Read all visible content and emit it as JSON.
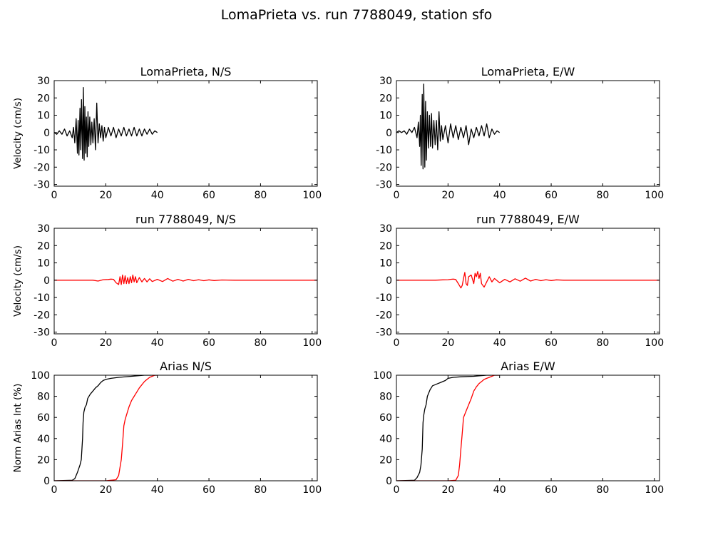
{
  "figure": {
    "suptitle": "LomaPrieta vs. run 7788049, station sfo"
  },
  "colors": {
    "recorded": "#000000",
    "simulated": "#ff0000",
    "axes": "#000000",
    "background": "#ffffff"
  },
  "chart_data": [
    {
      "type": "line",
      "title": "LomaPrieta, N/S",
      "xlabel": "",
      "ylabel": "Velocity (cm/s)",
      "xlim": [
        0,
        102
      ],
      "ylim": [
        -31,
        30
      ],
      "xticks": [
        0,
        20,
        40,
        60,
        80,
        100
      ],
      "yticks": [
        -30,
        -20,
        -10,
        0,
        10,
        20,
        30
      ],
      "grid": false,
      "series": [
        {
          "color": "#000000",
          "x": [
            0,
            1,
            2,
            3,
            4,
            5,
            6,
            7,
            7.5,
            8,
            8.5,
            9,
            9.3,
            9.6,
            10,
            10.3,
            10.6,
            11,
            11.3,
            11.6,
            11.9,
            12.2,
            12.5,
            12.8,
            13.1,
            13.4,
            13.8,
            14.2,
            14.6,
            15,
            15.5,
            16,
            16.5,
            17,
            17.5,
            18,
            18.5,
            19,
            19.5,
            20,
            21,
            22,
            23,
            24,
            25,
            26,
            27,
            28,
            29,
            30,
            31,
            32,
            33,
            34,
            35,
            36,
            37,
            38,
            39,
            40
          ],
          "y": [
            0,
            -1,
            1,
            -1,
            2,
            -2,
            1,
            -3,
            3,
            -6,
            8,
            -12,
            7,
            -13,
            14,
            -10,
            19,
            -15,
            26,
            -16,
            15,
            -12,
            9,
            -14,
            12,
            -8,
            9,
            -7,
            6,
            -6,
            8,
            -10,
            17,
            -6,
            5,
            -3,
            4,
            -5,
            3,
            -3,
            3,
            -2,
            3,
            -3,
            2,
            -2,
            3,
            -2,
            2,
            -2,
            3,
            -2,
            2,
            -2,
            2,
            -1,
            2,
            -1,
            1,
            0
          ]
        }
      ]
    },
    {
      "type": "line",
      "title": "LomaPrieta, E/W",
      "xlabel": "",
      "ylabel": "",
      "xlim": [
        0,
        102
      ],
      "ylim": [
        -31,
        30
      ],
      "xticks": [
        0,
        20,
        40,
        60,
        80,
        100
      ],
      "yticks": [
        -30,
        -20,
        -10,
        0,
        10,
        20,
        30
      ],
      "grid": false,
      "series": [
        {
          "color": "#000000",
          "x": [
            0,
            1,
            2,
            3,
            4,
            5,
            6,
            7,
            8,
            8.5,
            9,
            9.3,
            9.6,
            10,
            10.3,
            10.6,
            11,
            11.3,
            11.6,
            12,
            12.4,
            12.8,
            13.2,
            13.6,
            14,
            14.5,
            15,
            15.5,
            16,
            16.5,
            17,
            17.5,
            18,
            19,
            20,
            21,
            22,
            23,
            24,
            25,
            26,
            27,
            28,
            29,
            30,
            31,
            32,
            33,
            34,
            35,
            36,
            37,
            38,
            39,
            40
          ],
          "y": [
            0,
            1,
            0,
            1,
            -1,
            2,
            0,
            3,
            -3,
            6,
            -8,
            10,
            -19,
            22,
            -21,
            28,
            -20,
            18,
            -16,
            12,
            -9,
            10,
            -8,
            11,
            -9,
            7,
            -7,
            7,
            -10,
            12,
            -5,
            4,
            -4,
            4,
            -6,
            5,
            -3,
            4,
            -4,
            3,
            -3,
            4,
            -7,
            2,
            -3,
            3,
            -2,
            4,
            -2,
            5,
            -3,
            2,
            -1,
            1,
            0
          ]
        }
      ]
    },
    {
      "type": "line",
      "title": "run 7788049, N/S",
      "xlabel": "",
      "ylabel": "Velocity (cm/s)",
      "xlim": [
        0,
        102
      ],
      "ylim": [
        -31,
        30
      ],
      "xticks": [
        0,
        20,
        40,
        60,
        80,
        100
      ],
      "yticks": [
        -30,
        -20,
        -10,
        0,
        10,
        20,
        30
      ],
      "grid": false,
      "series": [
        {
          "color": "#ff0000",
          "x": [
            0,
            10,
            15,
            17,
            19,
            21,
            22,
            23,
            24,
            25,
            25.5,
            26,
            26.5,
            27,
            27.5,
            28,
            28.5,
            29,
            29.5,
            30,
            30.5,
            31,
            31.5,
            32,
            33,
            34,
            35,
            36,
            37,
            38,
            40,
            42,
            44,
            46,
            48,
            50,
            52,
            54,
            56,
            58,
            60,
            62,
            65,
            70,
            75,
            80,
            90,
            102
          ],
          "y": [
            0,
            0,
            0,
            -0.5,
            0.3,
            0.4,
            0.6,
            0.5,
            -1.5,
            -2.5,
            2,
            -2.5,
            3,
            -2,
            2.5,
            -2,
            1.5,
            -2,
            2,
            -1.5,
            3,
            -1,
            2,
            -1.5,
            1.5,
            -1,
            1,
            -1,
            0.8,
            -0.8,
            0.5,
            -0.8,
            1,
            -0.6,
            0.5,
            -0.5,
            0.5,
            -0.3,
            0.3,
            -0.3,
            0.2,
            -0.2,
            0.1,
            0,
            0,
            0,
            0,
            0
          ]
        }
      ]
    },
    {
      "type": "line",
      "title": "run 7788049, E/W",
      "xlabel": "",
      "ylabel": "",
      "xlim": [
        0,
        102
      ],
      "ylim": [
        -31,
        30
      ],
      "xticks": [
        0,
        20,
        40,
        60,
        80,
        100
      ],
      "yticks": [
        -30,
        -20,
        -10,
        0,
        10,
        20,
        30
      ],
      "grid": false,
      "series": [
        {
          "color": "#ff0000",
          "x": [
            0,
            10,
            15,
            18,
            20,
            21,
            22,
            23,
            24,
            25,
            25.5,
            26,
            26.5,
            27,
            27.5,
            28,
            29,
            30,
            30.5,
            31,
            31.5,
            32,
            32.5,
            33,
            34,
            35,
            36,
            37,
            38,
            40,
            42,
            44,
            46,
            48,
            50,
            52,
            54,
            56,
            58,
            60,
            62,
            65,
            70,
            80,
            90,
            102
          ],
          "y": [
            0,
            0,
            0,
            0.2,
            0.3,
            0.5,
            0.6,
            0.4,
            -2,
            -4.5,
            -3,
            1,
            4.5,
            -2,
            -3,
            2,
            3,
            -2,
            4,
            2,
            5,
            1,
            4,
            -2,
            -4,
            -1,
            2,
            -1,
            1,
            -1.5,
            0.5,
            -1,
            0.8,
            -0.6,
            1.2,
            -0.5,
            0.5,
            -0.3,
            0.3,
            -0.2,
            0.2,
            0,
            0,
            0,
            0,
            0
          ]
        }
      ]
    },
    {
      "type": "line",
      "title": "Arias N/S",
      "xlabel": "",
      "ylabel": "Norm Arias Int (%)",
      "xlim": [
        0,
        102
      ],
      "ylim": [
        0,
        100
      ],
      "xticks": [
        0,
        20,
        40,
        60,
        80,
        100
      ],
      "yticks": [
        0,
        20,
        40,
        60,
        80,
        100
      ],
      "grid": false,
      "series": [
        {
          "color": "#000000",
          "x": [
            0,
            7,
            8,
            9,
            10,
            10.5,
            11,
            11.2,
            11.5,
            12,
            12.5,
            13,
            14,
            15,
            16,
            17,
            18,
            19,
            20,
            22,
            25,
            30,
            35,
            40
          ],
          "y": [
            0,
            0.5,
            2,
            8,
            15,
            20,
            40,
            55,
            65,
            70,
            72,
            78,
            82,
            85,
            88,
            90,
            93,
            95,
            96,
            97,
            98,
            99,
            100,
            100
          ]
        },
        {
          "color": "#ff0000",
          "x": [
            0,
            20,
            24,
            25,
            26,
            26.5,
            27,
            27.5,
            28,
            29,
            30,
            31,
            32,
            33,
            34,
            35,
            36,
            37,
            38,
            39,
            40
          ],
          "y": [
            0,
            0,
            1,
            5,
            20,
            35,
            52,
            58,
            62,
            70,
            76,
            80,
            84,
            88,
            91,
            94,
            96,
            98,
            99,
            100,
            100
          ]
        }
      ]
    },
    {
      "type": "line",
      "title": "Arias E/W",
      "xlabel": "",
      "ylabel": "",
      "xlim": [
        0,
        102
      ],
      "ylim": [
        0,
        100
      ],
      "xticks": [
        0,
        20,
        40,
        60,
        80,
        100
      ],
      "yticks": [
        0,
        20,
        40,
        60,
        80,
        100
      ],
      "grid": false,
      "series": [
        {
          "color": "#000000",
          "x": [
            0,
            7,
            8,
            9,
            9.5,
            10,
            10.3,
            10.6,
            11,
            11.5,
            12,
            13,
            14,
            15,
            16,
            17,
            18,
            19,
            20,
            22,
            25,
            30,
            35,
            40
          ],
          "y": [
            0,
            0.5,
            3,
            8,
            15,
            30,
            55,
            62,
            68,
            72,
            80,
            86,
            90,
            91,
            92,
            93,
            94,
            95,
            97,
            98,
            98.5,
            99,
            100,
            100
          ]
        },
        {
          "color": "#ff0000",
          "x": [
            0,
            20,
            23,
            24,
            24.5,
            25,
            25.5,
            26,
            27,
            28,
            29,
            30,
            31,
            32,
            33,
            34,
            35,
            36,
            37,
            38,
            40
          ],
          "y": [
            0,
            0,
            0.5,
            5,
            15,
            30,
            45,
            60,
            66,
            72,
            78,
            85,
            89,
            92,
            94,
            96,
            97,
            98,
            99,
            100,
            100
          ]
        }
      ]
    }
  ]
}
